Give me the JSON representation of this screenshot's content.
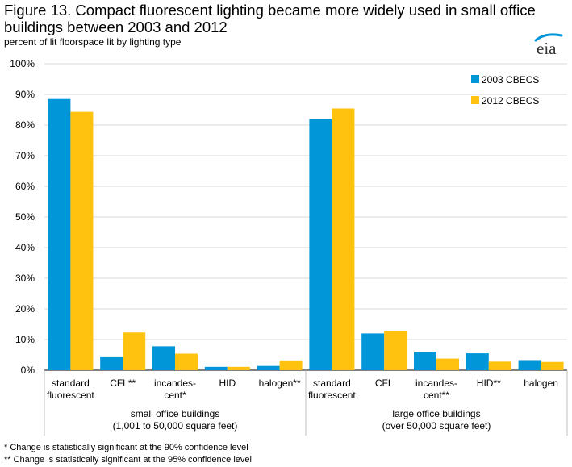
{
  "header": {
    "title": "Figure 13. Compact fluorescent lighting became more widely used in small office buildings between 2003 and 2012",
    "subtitle": "percent of lit floorspace lit by lighting type",
    "logo_text": "eia"
  },
  "footnotes": [
    "* Change is statistically significant at the 90% confidence level",
    "** Change is statistically significant at the 95% confidence level"
  ],
  "colors": {
    "series_2003": "#0096d7",
    "series_2012": "#ffc20e",
    "gridline": "#d9d9d9",
    "logo_swoosh": "#0096d7"
  },
  "chart_data": {
    "type": "bar",
    "ylim": [
      0,
      100
    ],
    "yticks": [
      "0%",
      "10%",
      "20%",
      "30%",
      "40%",
      "50%",
      "60%",
      "70%",
      "80%",
      "90%",
      "100%"
    ],
    "grid": true,
    "legend_position": "top-right",
    "groups": [
      {
        "label": [
          "small office buildings",
          "(1,001 to 50,000 square feet)"
        ],
        "categories": [
          [
            "standard",
            "fluorescent"
          ],
          [
            "CFL**"
          ],
          [
            "incandes-",
            "cent*"
          ],
          [
            "HID"
          ],
          [
            "halogen**"
          ]
        ]
      },
      {
        "label": [
          "large office buildings",
          "(over 50,000 square feet)"
        ],
        "categories": [
          [
            "standard",
            "fluorescent"
          ],
          [
            "CFL"
          ],
          [
            "incandes-",
            "cent**"
          ],
          [
            "HID**"
          ],
          [
            "halogen"
          ]
        ]
      }
    ],
    "series": [
      {
        "name": "2003 CBECS",
        "values": [
          88.5,
          4.5,
          7.8,
          1.1,
          1.4,
          82.0,
          12.0,
          6.0,
          5.5,
          3.3
        ]
      },
      {
        "name": "2012 CBECS",
        "values": [
          84.3,
          12.3,
          5.4,
          1.1,
          3.2,
          85.4,
          12.8,
          3.8,
          2.8,
          2.7
        ]
      }
    ]
  }
}
